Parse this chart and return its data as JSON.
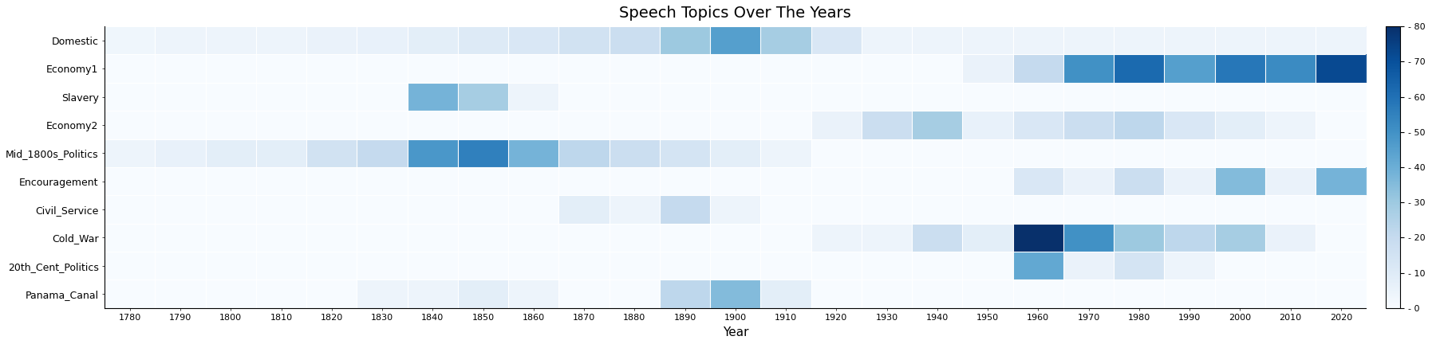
{
  "title": "Speech Topics Over The Years",
  "xlabel": "Year",
  "topics": [
    "Domestic",
    "Economy1",
    "Slavery",
    "Economy2",
    "Mid_1800s_Politics",
    "Encouragement",
    "Civil_Service",
    "Cold_War",
    "20th_Cent_Politics",
    "Panama_Canal"
  ],
  "years": [
    1780,
    1790,
    1800,
    1810,
    1820,
    1830,
    1840,
    1850,
    1860,
    1870,
    1880,
    1890,
    1900,
    1910,
    1920,
    1930,
    1940,
    1950,
    1960,
    1970,
    1980,
    1990,
    2000,
    2010,
    2020
  ],
  "data": {
    "Domestic": [
      3,
      4,
      4,
      4,
      5,
      6,
      8,
      10,
      12,
      15,
      18,
      30,
      45,
      28,
      12,
      4,
      4,
      4,
      4,
      4,
      4,
      4,
      4,
      4,
      4
    ],
    "Economy1": [
      0,
      0,
      0,
      0,
      0,
      0,
      0,
      0,
      0,
      0,
      0,
      0,
      0,
      0,
      0,
      0,
      0,
      5,
      20,
      50,
      62,
      45,
      58,
      52,
      72
    ],
    "Slavery": [
      0,
      0,
      0,
      0,
      0,
      0,
      38,
      28,
      4,
      0,
      0,
      0,
      0,
      0,
      0,
      0,
      0,
      0,
      0,
      0,
      0,
      0,
      0,
      0,
      0
    ],
    "Economy2": [
      0,
      0,
      0,
      0,
      0,
      0,
      0,
      0,
      0,
      0,
      0,
      0,
      0,
      0,
      5,
      18,
      28,
      6,
      12,
      18,
      22,
      12,
      8,
      4,
      0
    ],
    "Mid_1800s_Politics": [
      4,
      6,
      8,
      8,
      15,
      20,
      48,
      55,
      38,
      22,
      18,
      14,
      8,
      4,
      0,
      0,
      0,
      0,
      0,
      0,
      0,
      0,
      0,
      0,
      0
    ],
    "Encouragement": [
      0,
      0,
      0,
      0,
      0,
      0,
      0,
      0,
      0,
      0,
      0,
      0,
      0,
      0,
      0,
      0,
      0,
      0,
      12,
      5,
      18,
      5,
      35,
      5,
      38
    ],
    "Civil_Service": [
      0,
      0,
      0,
      0,
      0,
      0,
      0,
      0,
      0,
      8,
      4,
      20,
      4,
      0,
      0,
      0,
      0,
      0,
      0,
      0,
      0,
      0,
      0,
      0,
      0
    ],
    "Cold_War": [
      0,
      0,
      0,
      0,
      0,
      0,
      0,
      0,
      0,
      0,
      0,
      0,
      0,
      0,
      4,
      4,
      18,
      8,
      80,
      50,
      30,
      22,
      28,
      5,
      0
    ],
    "20th_Cent_Politics": [
      0,
      0,
      0,
      0,
      0,
      0,
      0,
      0,
      0,
      0,
      0,
      0,
      0,
      0,
      0,
      0,
      0,
      0,
      42,
      5,
      14,
      4,
      0,
      0,
      0
    ],
    "Panama_Canal": [
      0,
      0,
      0,
      0,
      0,
      4,
      4,
      8,
      4,
      0,
      0,
      22,
      35,
      8,
      0,
      0,
      0,
      0,
      0,
      0,
      0,
      0,
      0,
      0,
      0
    ]
  },
  "vmin": 0,
  "vmax": 80,
  "cmap": "Blues",
  "colorbar_ticks": [
    0,
    10,
    20,
    30,
    40,
    50,
    60,
    70,
    80
  ],
  "title_fontsize": 14,
  "axis_label_fontsize": 11,
  "ytick_fontsize": 9,
  "xtick_fontsize": 8,
  "colorbar_label_fontsize": 8,
  "background_color": "#eaf0f8",
  "linewidth": 0.8
}
